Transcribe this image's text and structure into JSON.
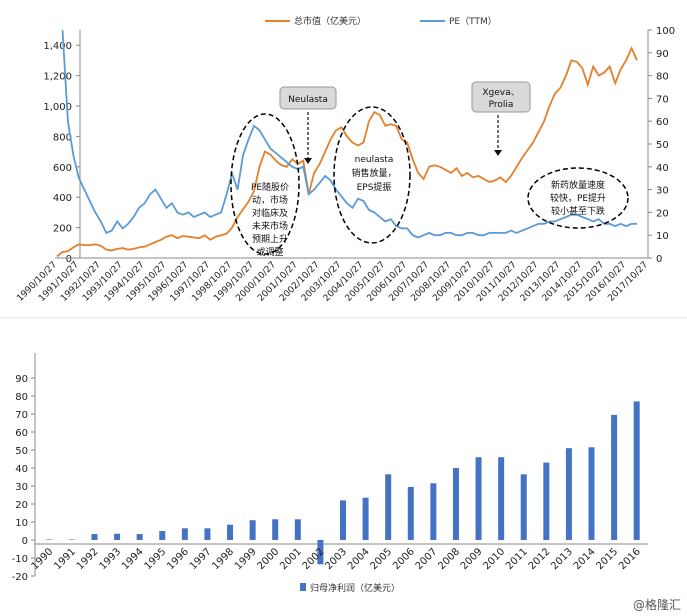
{
  "chart_data": [
    {
      "type": "line",
      "x_type": "date",
      "x_tick_labels": [
        "1990/10/27",
        "1991/10/27",
        "1992/10/27",
        "1993/10/27",
        "1994/10/27",
        "1995/10/27",
        "1996/10/27",
        "1997/10/27",
        "1998/10/27",
        "1999/10/27",
        "2000/10/27",
        "2001/10/27",
        "2002/10/27",
        "2003/10/27",
        "2004/10/27",
        "2005/10/27",
        "2006/10/27",
        "2007/10/27",
        "2008/10/27",
        "2009/10/27",
        "2010/10/27",
        "2011/10/27",
        "2012/10/27",
        "2013/10/27",
        "2014/10/27",
        "2015/10/27",
        "2016/10/27",
        "2017/10/27"
      ],
      "y_left": {
        "ylim": [
          0,
          1500
        ],
        "ticks": [
          "0",
          "200",
          "400",
          "600",
          "800",
          "1,000",
          "1,200",
          "1,400"
        ]
      },
      "y_right": {
        "ylim": [
          0,
          100
        ],
        "ticks": [
          "0",
          "10",
          "20",
          "30",
          "40",
          "50",
          "60",
          "70",
          "80",
          "90",
          "100"
        ]
      },
      "grid": false,
      "legend_position": "top",
      "series": [
        {
          "name": "总市值（亿美元）",
          "axis": "left",
          "color": "#E3802A",
          "points": [
            [
              "1990-10-27",
              10
            ],
            [
              "1991-01-27",
              40
            ],
            [
              "1991-04-27",
              45
            ],
            [
              "1991-07-27",
              70
            ],
            [
              "1991-10-27",
              90
            ],
            [
              "1992-01-27",
              85
            ],
            [
              "1992-04-27",
              85
            ],
            [
              "1992-07-27",
              90
            ],
            [
              "1992-10-27",
              80
            ],
            [
              "1993-01-27",
              55
            ],
            [
              "1993-04-27",
              50
            ],
            [
              "1993-07-27",
              60
            ],
            [
              "1993-10-27",
              65
            ],
            [
              "1994-01-27",
              55
            ],
            [
              "1994-04-27",
              60
            ],
            [
              "1994-07-27",
              70
            ],
            [
              "1994-10-27",
              75
            ],
            [
              "1995-01-27",
              90
            ],
            [
              "1995-04-27",
              105
            ],
            [
              "1995-07-27",
              120
            ],
            [
              "1995-10-27",
              140
            ],
            [
              "1996-01-27",
              150
            ],
            [
              "1996-04-27",
              130
            ],
            [
              "1996-07-27",
              145
            ],
            [
              "1996-10-27",
              140
            ],
            [
              "1997-01-27",
              135
            ],
            [
              "1997-04-27",
              130
            ],
            [
              "1997-07-27",
              150
            ],
            [
              "1997-10-27",
              120
            ],
            [
              "1998-01-27",
              140
            ],
            [
              "1998-04-27",
              150
            ],
            [
              "1998-07-27",
              160
            ],
            [
              "1998-10-27",
              200
            ],
            [
              "1999-01-27",
              270
            ],
            [
              "1999-04-27",
              320
            ],
            [
              "1999-07-27",
              370
            ],
            [
              "1999-10-27",
              440
            ],
            [
              "2000-01-27",
              600
            ],
            [
              "2000-04-27",
              700
            ],
            [
              "2000-07-27",
              680
            ],
            [
              "2000-10-27",
              640
            ],
            [
              "2001-01-27",
              610
            ],
            [
              "2001-04-27",
              600
            ],
            [
              "2001-07-27",
              650
            ],
            [
              "2001-10-27",
              620
            ],
            [
              "2002-01-27",
              640
            ],
            [
              "2002-04-27",
              420
            ],
            [
              "2002-07-27",
              560
            ],
            [
              "2002-10-27",
              620
            ],
            [
              "2003-01-27",
              700
            ],
            [
              "2003-04-27",
              780
            ],
            [
              "2003-07-27",
              840
            ],
            [
              "2003-10-27",
              860
            ],
            [
              "2004-01-27",
              800
            ],
            [
              "2004-04-27",
              760
            ],
            [
              "2004-07-27",
              740
            ],
            [
              "2004-10-27",
              760
            ],
            [
              "2005-01-27",
              900
            ],
            [
              "2005-04-27",
              960
            ],
            [
              "2005-07-27",
              940
            ],
            [
              "2005-10-27",
              870
            ],
            [
              "2006-01-27",
              880
            ],
            [
              "2006-04-27",
              870
            ],
            [
              "2006-07-27",
              780
            ],
            [
              "2006-10-27",
              760
            ],
            [
              "2007-01-27",
              650
            ],
            [
              "2007-04-27",
              560
            ],
            [
              "2007-07-27",
              520
            ],
            [
              "2007-10-27",
              600
            ],
            [
              "2008-01-27",
              610
            ],
            [
              "2008-04-27",
              600
            ],
            [
              "2008-07-27",
              580
            ],
            [
              "2008-10-27",
              560
            ],
            [
              "2009-01-27",
              590
            ],
            [
              "2009-04-27",
              540
            ],
            [
              "2009-07-27",
              560
            ],
            [
              "2009-10-27",
              530
            ],
            [
              "2010-01-27",
              540
            ],
            [
              "2010-04-27",
              520
            ],
            [
              "2010-07-27",
              500
            ],
            [
              "2010-10-27",
              510
            ],
            [
              "2011-01-27",
              530
            ],
            [
              "2011-04-27",
              500
            ],
            [
              "2011-07-27",
              540
            ],
            [
              "2011-10-27",
              600
            ],
            [
              "2012-01-27",
              660
            ],
            [
              "2012-04-27",
              710
            ],
            [
              "2012-07-27",
              760
            ],
            [
              "2012-10-27",
              830
            ],
            [
              "2013-01-27",
              900
            ],
            [
              "2013-04-27",
              1000
            ],
            [
              "2013-07-27",
              1080
            ],
            [
              "2013-10-27",
              1120
            ],
            [
              "2014-01-27",
              1200
            ],
            [
              "2014-04-27",
              1300
            ],
            [
              "2014-07-27",
              1290
            ],
            [
              "2014-10-27",
              1250
            ],
            [
              "2015-01-27",
              1140
            ],
            [
              "2015-04-27",
              1260
            ],
            [
              "2015-07-27",
              1200
            ],
            [
              "2015-10-27",
              1220
            ],
            [
              "2016-01-27",
              1260
            ],
            [
              "2016-04-27",
              1150
            ],
            [
              "2016-07-27",
              1240
            ],
            [
              "2016-10-27",
              1300
            ],
            [
              "2017-01-27",
              1380
            ],
            [
              "2017-04-27",
              1300
            ]
          ]
        },
        {
          "name": "PE（TTM）",
          "axis": "right",
          "color": "#5B9BD5",
          "points": [
            [
              "1991-01-27",
              100
            ],
            [
              "1991-04-27",
              60
            ],
            [
              "1991-07-27",
              45
            ],
            [
              "1991-10-27",
              35
            ],
            [
              "1992-01-27",
              30
            ],
            [
              "1992-04-27",
              25
            ],
            [
              "1992-07-27",
              20
            ],
            [
              "1992-10-27",
              16
            ],
            [
              "1993-01-27",
              11
            ],
            [
              "1993-04-27",
              12
            ],
            [
              "1993-07-27",
              16
            ],
            [
              "1993-10-27",
              13
            ],
            [
              "1994-01-27",
              15
            ],
            [
              "1994-04-27",
              18
            ],
            [
              "1994-07-27",
              22
            ],
            [
              "1994-10-27",
              24
            ],
            [
              "1995-01-27",
              28
            ],
            [
              "1995-04-27",
              30
            ],
            [
              "1995-07-27",
              26
            ],
            [
              "1995-10-27",
              22
            ],
            [
              "1996-01-27",
              24
            ],
            [
              "1996-04-27",
              20
            ],
            [
              "1996-07-27",
              19
            ],
            [
              "1996-10-27",
              20
            ],
            [
              "1997-01-27",
              18
            ],
            [
              "1997-04-27",
              19
            ],
            [
              "1997-07-27",
              20
            ],
            [
              "1997-10-27",
              18
            ],
            [
              "1998-01-27",
              19
            ],
            [
              "1998-04-27",
              20
            ],
            [
              "1998-07-27",
              28
            ],
            [
              "1998-10-27",
              37
            ],
            [
              "1999-01-27",
              30
            ],
            [
              "1999-04-27",
              45
            ],
            [
              "1999-07-27",
              52
            ],
            [
              "1999-10-27",
              58
            ],
            [
              "2000-01-27",
              56
            ],
            [
              "2000-04-27",
              52
            ],
            [
              "2000-07-27",
              48
            ],
            [
              "2000-10-27",
              46
            ],
            [
              "2001-01-27",
              44
            ],
            [
              "2001-04-27",
              42
            ],
            [
              "2001-07-27",
              40
            ],
            [
              "2001-10-27",
              39
            ],
            [
              "2002-01-27",
              40
            ],
            [
              "2002-04-27",
              28
            ],
            [
              "2002-07-27",
              30
            ],
            [
              "2002-10-27",
              33
            ],
            [
              "2003-01-27",
              36
            ],
            [
              "2003-04-27",
              34
            ],
            [
              "2003-07-27",
              30
            ],
            [
              "2003-10-27",
              27
            ],
            [
              "2004-01-27",
              24
            ],
            [
              "2004-04-27",
              22
            ],
            [
              "2004-07-27",
              26
            ],
            [
              "2004-10-27",
              25
            ],
            [
              "2005-01-27",
              21
            ],
            [
              "2005-04-27",
              20
            ],
            [
              "2005-07-27",
              18
            ],
            [
              "2005-10-27",
              16
            ],
            [
              "2006-01-27",
              17
            ],
            [
              "2006-04-27",
              14
            ],
            [
              "2006-07-27",
              13
            ],
            [
              "2006-10-27",
              13
            ],
            [
              "2007-01-27",
              10
            ],
            [
              "2007-04-27",
              9
            ],
            [
              "2007-07-27",
              10
            ],
            [
              "2007-10-27",
              11
            ],
            [
              "2008-01-27",
              10
            ],
            [
              "2008-04-27",
              10
            ],
            [
              "2008-07-27",
              11
            ],
            [
              "2008-10-27",
              11
            ],
            [
              "2009-01-27",
              10
            ],
            [
              "2009-04-27",
              10
            ],
            [
              "2009-07-27",
              11
            ],
            [
              "2009-10-27",
              11
            ],
            [
              "2010-01-27",
              10
            ],
            [
              "2010-04-27",
              10
            ],
            [
              "2010-07-27",
              11
            ],
            [
              "2010-10-27",
              11
            ],
            [
              "2011-01-27",
              11
            ],
            [
              "2011-04-27",
              11
            ],
            [
              "2011-07-27",
              12
            ],
            [
              "2011-10-27",
              11
            ],
            [
              "2012-01-27",
              12
            ],
            [
              "2012-04-27",
              13
            ],
            [
              "2012-07-27",
              14
            ],
            [
              "2012-10-27",
              15
            ],
            [
              "2013-01-27",
              15
            ],
            [
              "2013-04-27",
              16
            ],
            [
              "2013-07-27",
              16
            ],
            [
              "2013-10-27",
              17
            ],
            [
              "2014-01-27",
              18
            ],
            [
              "2014-04-27",
              19
            ],
            [
              "2014-07-27",
              19
            ],
            [
              "2014-10-27",
              18
            ],
            [
              "2015-01-27",
              17
            ],
            [
              "2015-04-27",
              16
            ],
            [
              "2015-07-27",
              17
            ],
            [
              "2015-10-27",
              15
            ],
            [
              "2016-01-27",
              15
            ],
            [
              "2016-04-27",
              14
            ],
            [
              "2016-07-27",
              15
            ],
            [
              "2016-10-27",
              14
            ],
            [
              "2017-01-27",
              15
            ],
            [
              "2017-04-27",
              15
            ]
          ]
        }
      ],
      "annotations": {
        "callouts": [
          {
            "text": "Neulasta",
            "at": "2002-01-27"
          },
          {
            "text_lines": [
              "Xgeva、",
              "Prolia"
            ],
            "at": "2010-10-27"
          }
        ],
        "ellipse_notes": [
          {
            "lines": [
              "PE随股价",
              "动，市场",
              "对临床及",
              "未来市场",
              "预期上升",
              "或调整"
            ]
          },
          {
            "lines": [
              "neulasta",
              "销售放量，",
              "EPS提振"
            ]
          },
          {
            "lines": [
              "新药放量速度",
              "较快，PE提升",
              "较小甚至下跌"
            ]
          }
        ]
      }
    },
    {
      "type": "bar",
      "categories": [
        "1990",
        "1991",
        "1992",
        "1993",
        "1994",
        "1995",
        "1996",
        "1997",
        "1998",
        "1999",
        "2000",
        "2001",
        "2002",
        "2003",
        "2004",
        "2005",
        "2006",
        "2007",
        "2008",
        "2009",
        "2010",
        "2011",
        "2012",
        "2013",
        "2014",
        "2015",
        "2016"
      ],
      "series": [
        {
          "name": "归母净利润（亿美元）",
          "color": "#4472C4",
          "values": [
            0.3,
            0.3,
            3.3,
            3.5,
            3.3,
            5.0,
            6.5,
            6.5,
            8.5,
            11.0,
            11.5,
            11.5,
            -13.5,
            22.0,
            23.5,
            36.5,
            29.5,
            31.5,
            40.0,
            46.0,
            46.0,
            36.5,
            43.0,
            51.0,
            51.5,
            69.5,
            77.0
          ]
        }
      ],
      "ylim": [
        -20,
        90
      ],
      "y_ticks": [
        "-20",
        "-10",
        "0",
        "10",
        "20",
        "30",
        "40",
        "50",
        "60",
        "70",
        "80",
        "90"
      ],
      "grid": false,
      "legend_position": "bottom"
    }
  ],
  "watermark": "@格隆汇"
}
